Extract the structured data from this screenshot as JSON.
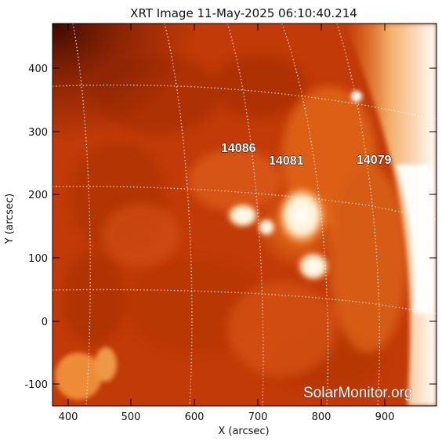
{
  "title": "XRT Image 11-May-2025 06:10:40.214",
  "axes": {
    "xlabel": "X (arcsec)",
    "ylabel": "Y (arcsec)",
    "xticks": [
      "400",
      "500",
      "600",
      "700",
      "800",
      "900"
    ],
    "yticks": [
      "400",
      "300",
      "200",
      "100",
      "0",
      "-100"
    ]
  },
  "regions": [
    {
      "number": "14086"
    },
    {
      "number": "14081"
    },
    {
      "number": "14079"
    }
  ],
  "watermark": "SolarMonitor.org",
  "colors": {
    "background_disk": "#c23c08",
    "dark_corner": "#4a0d02",
    "bright_region": "#ffffff",
    "grid": "#ffffff"
  }
}
